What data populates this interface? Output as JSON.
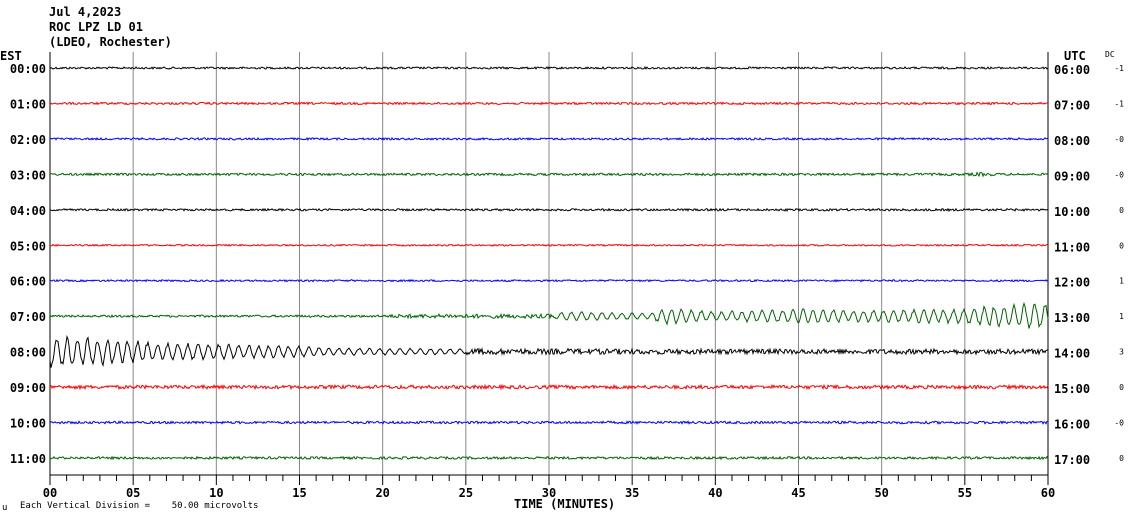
{
  "header": {
    "date": "Jul 4,2023",
    "station": "ROC LPZ LD 01",
    "network": "(LDEO, Rochester)"
  },
  "chart_data": {
    "type": "line",
    "title": "Jul 4,2023 ROC LPZ LD 01 (LDEO, Rochester)",
    "xlabel": "TIME (MINUTES)",
    "xlim": [
      0,
      60
    ],
    "x_ticks": [
      "00",
      "05",
      "10",
      "15",
      "20",
      "25",
      "30",
      "35",
      "40",
      "45",
      "50",
      "55",
      "60"
    ],
    "left_axis_title": "EST",
    "right_axis_title": "UTC",
    "dc_title": "DC",
    "grid": true,
    "scale_note": "Each Vertical Division =    50.00 microvolts",
    "corner_mark": "u",
    "traces": [
      {
        "est": "00:00",
        "utc": "06:00",
        "dc": "-1",
        "color": "#000000",
        "envelope": [
          [
            0,
            1
          ],
          [
            60,
            1
          ]
        ]
      },
      {
        "est": "01:00",
        "utc": "07:00",
        "dc": "-1",
        "color": "#ff0000",
        "envelope": [
          [
            0,
            1.1
          ],
          [
            60,
            1.1
          ]
        ]
      },
      {
        "est": "02:00",
        "utc": "08:00",
        "dc": "-0",
        "color": "#0000ff",
        "envelope": [
          [
            0,
            1
          ],
          [
            60,
            1
          ]
        ]
      },
      {
        "est": "03:00",
        "utc": "09:00",
        "dc": "-0",
        "color": "#006400",
        "envelope": [
          [
            0,
            1.1
          ],
          [
            55,
            1.2
          ],
          [
            56,
            2
          ],
          [
            57,
            1.1
          ],
          [
            60,
            1
          ]
        ]
      },
      {
        "est": "04:00",
        "utc": "10:00",
        "dc": "0",
        "color": "#000000",
        "envelope": [
          [
            0,
            1
          ],
          [
            60,
            1.1
          ]
        ]
      },
      {
        "est": "05:00",
        "utc": "11:00",
        "dc": "0",
        "color": "#ff0000",
        "envelope": [
          [
            0,
            0.8
          ],
          [
            60,
            0.8
          ]
        ]
      },
      {
        "est": "06:00",
        "utc": "12:00",
        "dc": "1",
        "color": "#0000ff",
        "envelope": [
          [
            0,
            0.9
          ],
          [
            60,
            0.9
          ]
        ]
      },
      {
        "est": "07:00",
        "utc": "13:00",
        "dc": "1",
        "color": "#006400",
        "envelope": [
          [
            0,
            1
          ],
          [
            20,
            1.1
          ],
          [
            21,
            2
          ],
          [
            30,
            2
          ],
          [
            31,
            5
          ],
          [
            36,
            3
          ],
          [
            37,
            9
          ],
          [
            40,
            5
          ],
          [
            46,
            8
          ],
          [
            48,
            6
          ],
          [
            55,
            8
          ],
          [
            57,
            12
          ],
          [
            60,
            14
          ]
        ]
      },
      {
        "est": "08:00",
        "utc": "14:00",
        "dc": "3",
        "color": "#000000",
        "envelope": [
          [
            0,
            18
          ],
          [
            5,
            12
          ],
          [
            7,
            9
          ],
          [
            10,
            8
          ],
          [
            15,
            6
          ],
          [
            17,
            4
          ],
          [
            25,
            3
          ],
          [
            40,
            2.5
          ],
          [
            60,
            2.5
          ]
        ]
      },
      {
        "est": "09:00",
        "utc": "15:00",
        "dc": "0",
        "color": "#ff0000",
        "envelope": [
          [
            0,
            1.8
          ],
          [
            60,
            1.8
          ]
        ]
      },
      {
        "est": "10:00",
        "utc": "16:00",
        "dc": "-0",
        "color": "#0000ff",
        "envelope": [
          [
            0,
            1.2
          ],
          [
            60,
            1.3
          ]
        ]
      },
      {
        "est": "11:00",
        "utc": "17:00",
        "dc": "0",
        "color": "#006400",
        "envelope": [
          [
            0,
            1.2
          ],
          [
            60,
            1.2
          ]
        ]
      }
    ]
  }
}
